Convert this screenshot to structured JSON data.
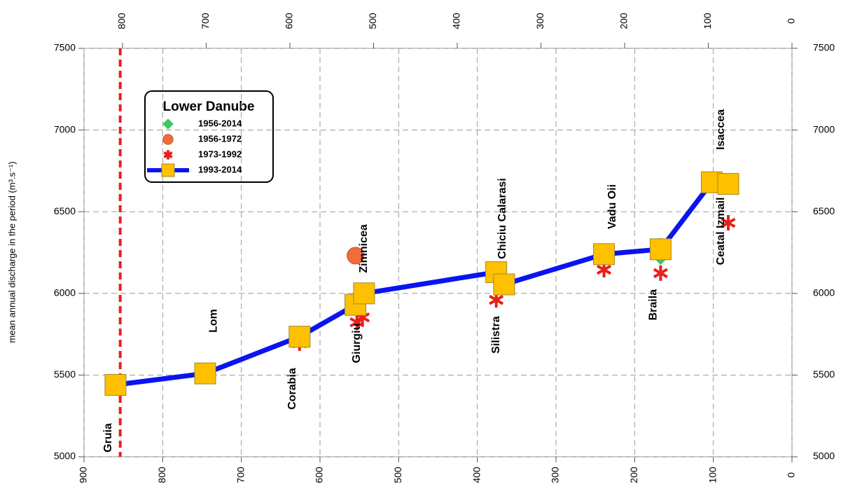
{
  "chart_data": {
    "type": "scatter",
    "y_label": "mean annual discharge in the period (m³.s⁻¹)",
    "xlim": [
      900,
      0
    ],
    "xticks": [
      900,
      800,
      700,
      600,
      500,
      400,
      300,
      200,
      100,
      0
    ],
    "x2lim": [
      846,
      0
    ],
    "x2ticks": [
      800,
      700,
      600,
      500,
      400,
      300,
      200,
      100,
      0
    ],
    "ylim": [
      5000,
      7500
    ],
    "yticks": [
      5000,
      5500,
      6000,
      6500,
      7000,
      7500
    ],
    "grid": true,
    "legend_title": "Lower Danube",
    "vline": {
      "x": 854,
      "color": "#e8201a"
    },
    "series": [
      {
        "name": "1956-2014",
        "color": "#3cc85a",
        "marker": "diamond",
        "line": false,
        "x": [
          167
        ],
        "values": [
          6230
        ]
      },
      {
        "name": "1956-1972",
        "color": "#f26b3a",
        "marker": "circle",
        "line": false,
        "x": [
          555,
          167,
          81
        ],
        "values": [
          6231,
          6285,
          6680
        ]
      },
      {
        "name": "1973-1992",
        "color": "#e8201a",
        "marker": "star",
        "line": false,
        "x": [
          626,
          553,
          546,
          376,
          239,
          167,
          81
        ],
        "values": [
          5695,
          5823,
          5853,
          5960,
          6145,
          6124,
          6432
        ]
      },
      {
        "name": "1993-2014",
        "color": "#ffc000",
        "line_color": "#0a14f0",
        "marker": "square",
        "line": true,
        "x": [
          860,
          746,
          626,
          555,
          544,
          376,
          366,
          239,
          167,
          102,
          81
        ],
        "values": [
          5440,
          5510,
          5735,
          5930,
          6000,
          6130,
          6055,
          6240,
          6270,
          6680,
          6670
        ]
      }
    ],
    "annotations": [
      {
        "text": "Gruia",
        "x": 869,
        "y": 5116
      },
      {
        "text": "Lom",
        "x": 735,
        "y": 5832
      },
      {
        "text": "Corabia",
        "x": 635,
        "y": 5416
      },
      {
        "text": "Giurgiu",
        "x": 553,
        "y": 5695
      },
      {
        "text": "Zimnicea",
        "x": 544,
        "y": 6274
      },
      {
        "text": "Chiciu Calarasi",
        "x": 368,
        "y": 6458
      },
      {
        "text": "Silistra",
        "x": 376,
        "y": 5746
      },
      {
        "text": "Vadu Oii",
        "x": 228,
        "y": 6531
      },
      {
        "text": "Braila",
        "x": 176,
        "y": 5930
      },
      {
        "text": "Isaccea",
        "x": 90,
        "y": 7003
      },
      {
        "text": "Ceatal Izmail",
        "x": 90,
        "y": 6381
      }
    ]
  }
}
